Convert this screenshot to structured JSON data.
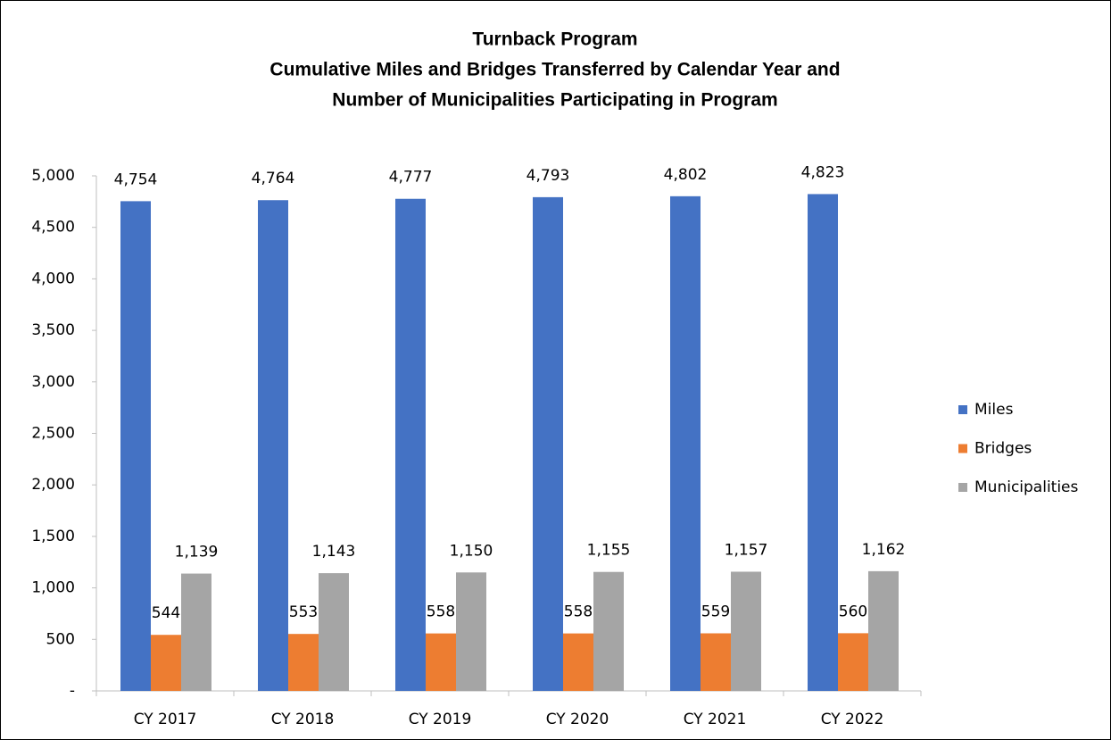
{
  "chart_data": {
    "type": "bar",
    "title": [
      "Turnback Program",
      "Cumulative Miles and Bridges Transferred by Calendar Year and",
      "Number of Municipalities Participating in Program"
    ],
    "categories": [
      "CY 2017",
      "CY 2018",
      "CY 2019",
      "CY 2020",
      "CY 2021",
      "CY 2022"
    ],
    "series": [
      {
        "name": "Miles",
        "color": "#4472c4",
        "values": [
          4754,
          4764,
          4777,
          4793,
          4802,
          4823
        ],
        "value_labels": [
          "4,754",
          "4,764",
          "4,777",
          "4,793",
          "4,802",
          "4,823"
        ]
      },
      {
        "name": "Bridges",
        "color": "#ed7d31",
        "values": [
          544,
          553,
          558,
          558,
          559,
          560
        ]
      },
      {
        "name": "Municipalities",
        "color": "#a5a5a5",
        "values": [
          1139,
          1143,
          1150,
          1155,
          1157,
          1162
        ],
        "value_labels": [
          "1,139",
          "1,143",
          "1,150",
          "1,155",
          "1,157",
          "1,162"
        ]
      }
    ],
    "ylim": [
      0,
      5000
    ],
    "yticks": [
      {
        "value": 0,
        "label": "-"
      },
      500,
      {
        "value": 1000,
        "label": "1,000"
      },
      {
        "value": 1500,
        "label": "1,500"
      },
      {
        "value": 2000,
        "label": "2,000"
      },
      {
        "value": 2500,
        "label": "2,500"
      },
      {
        "value": 3000,
        "label": "3,000"
      },
      {
        "value": 3500,
        "label": "3,500"
      },
      {
        "value": 4000,
        "label": "4,000"
      },
      {
        "value": 4500,
        "label": "4,500"
      },
      {
        "value": 5000,
        "label": "5,000"
      }
    ],
    "grid": false,
    "legend": "right"
  }
}
